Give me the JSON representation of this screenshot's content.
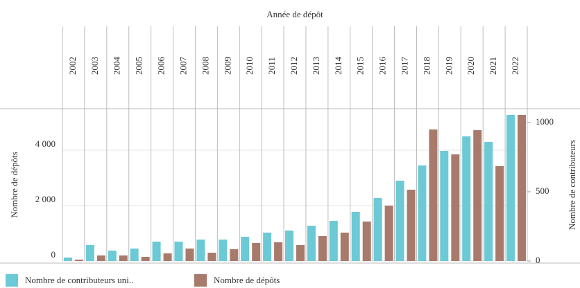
{
  "chart_data": {
    "type": "bar",
    "x_title": "Année de dépôt",
    "y_title": "Nombre de dépôts",
    "y2_title": "Nombre de contributeurs",
    "categories": [
      "2002",
      "2003",
      "2004",
      "2005",
      "2006",
      "2007",
      "2008",
      "2009",
      "2010",
      "2011",
      "2012",
      "2013",
      "2014",
      "2015",
      "2016",
      "2017",
      "2018",
      "2019",
      "2020",
      "2021",
      "2022"
    ],
    "series": [
      {
        "name": "Nombre de contributeurs uni..",
        "color": "#6cc9d6",
        "axis": "y2",
        "values": [
          25,
          115,
          75,
          90,
          140,
          140,
          155,
          155,
          175,
          205,
          220,
          255,
          290,
          355,
          455,
          580,
          690,
          795,
          900,
          860,
          1055
        ]
      },
      {
        "name": "Nombre de dépôts",
        "color": "#a87a6c",
        "values": [
          50,
          200,
          200,
          150,
          275,
          450,
          300,
          425,
          650,
          675,
          575,
          900,
          1025,
          1425,
          2000,
          2575,
          4750,
          3850,
          4725,
          3425,
          5275
        ]
      }
    ],
    "ylim": [
      0,
      5500
    ],
    "yticks": [
      0,
      {
        "value": 2000,
        "label": "2 000"
      },
      {
        "value": 4000,
        "label": "4 000"
      }
    ],
    "y2lim": [
      0,
      1100
    ],
    "y2ticks": [
      0,
      500,
      1000
    ],
    "grid": true
  }
}
